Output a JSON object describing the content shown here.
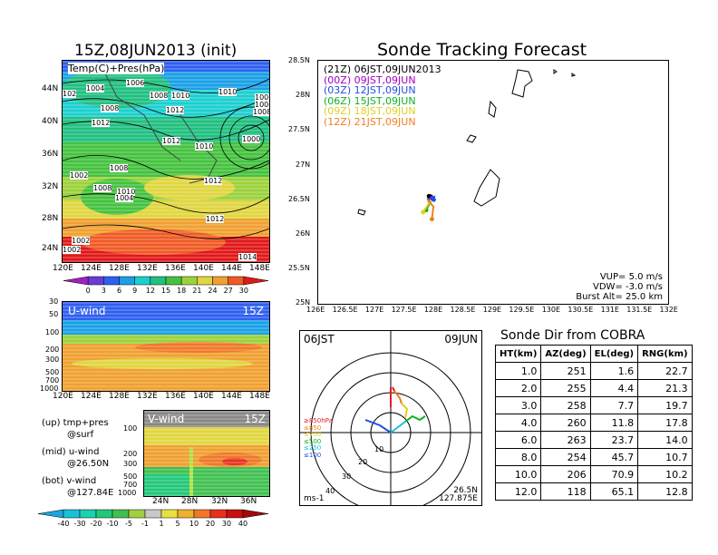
{
  "left": {
    "map_title": "15Z,08JUN2013 (init)",
    "map_label": "Temp(C)+Pres(hPa)",
    "map_lat_ticks": [
      "44N",
      "40N",
      "36N",
      "32N",
      "28N",
      "24N"
    ],
    "lon_ticks": [
      "120E",
      "124E",
      "128E",
      "132E",
      "136E",
      "140E",
      "144E",
      "148E"
    ],
    "pressure_labels": [
      "1004",
      "1006",
      "1008",
      "1010",
      "1010",
      "1008",
      "1012",
      "1012",
      "1010",
      "1012",
      "1000",
      "1008",
      "1002",
      "1008",
      "1010",
      "1004",
      "1012",
      "1012",
      "1002",
      "1002",
      "1014",
      "102",
      "1006",
      "1006",
      "1008"
    ],
    "temp_colorbar": {
      "ticks": [
        "0",
        "3",
        "6",
        "9",
        "12",
        "15",
        "18",
        "21",
        "24",
        "27",
        "30"
      ],
      "colors": [
        "#a020c0",
        "#6a3cd6",
        "#2f5ff0",
        "#19a0e6",
        "#1ccfcf",
        "#20c080",
        "#44c23e",
        "#9bd23a",
        "#e0d640",
        "#f0a030",
        "#f05a24",
        "#e01818"
      ]
    },
    "uwind_title": "U-wind",
    "uwind_time": "15Z",
    "uwind_y_ticks": [
      "30",
      "50",
      "100",
      "200",
      "300",
      "500",
      "700",
      "1000"
    ],
    "vwind_title": "V-wind",
    "vwind_time": "15Z",
    "vwind_y_ticks": [
      "100",
      "200",
      "300",
      "500",
      "700",
      "1000"
    ],
    "vwind_x_ticks": [
      "24N",
      "28N",
      "32N",
      "36N"
    ],
    "notes": [
      "(up) tmp+pres",
      "@surf",
      "(mid) u-wind",
      "@26.50N",
      "(bot) v-wind",
      "@127.84E"
    ],
    "wind_colorbar": {
      "ticks": [
        "-40",
        "-30",
        "-20",
        "-10",
        "-5",
        "-1",
        "1",
        "5",
        "10",
        "20",
        "30",
        "40"
      ],
      "colors": [
        "#1aa6e0",
        "#18c0d8",
        "#1cd0b0",
        "#22c87a",
        "#40c050",
        "#a0d040",
        "#c8c8c8",
        "#e8e040",
        "#f0b030",
        "#f07828",
        "#e83020",
        "#c81010",
        "#a00c0c"
      ]
    }
  },
  "tracking": {
    "title": "Sonde Tracking Forecast",
    "lat_ticks": [
      "28.5N",
      "28N",
      "27.5N",
      "27N",
      "26.5N",
      "26N",
      "25.5N",
      "25N"
    ],
    "lon_ticks": [
      "126E",
      "126.5E",
      "127E",
      "127.5E",
      "128E",
      "128.5E",
      "129E",
      "129.5E",
      "130E",
      "130.5E",
      "131E",
      "131.5E",
      "132E"
    ],
    "legend": [
      {
        "label": "(21Z) 06JST,09JUN2013",
        "color": "#000000"
      },
      {
        "label": "(00Z) 09JST,09JUN",
        "color": "#a000c0"
      },
      {
        "label": "(03Z) 12JST,09JUN",
        "color": "#2050e0"
      },
      {
        "label": "(06Z) 15JST,09JUN",
        "color": "#10b020"
      },
      {
        "label": "(09Z) 18JST,09JUN",
        "color": "#e0d020"
      },
      {
        "label": "(12Z) 21JST,09JUN",
        "color": "#f08020"
      }
    ],
    "params": [
      "VUP=  5.0 m/s",
      "VDW= -3.0 m/s",
      "Burst Alt=  25.0 km"
    ],
    "track_ends": [
      {
        "lon": 127.9,
        "lat": 26.55,
        "color": "#000000"
      },
      {
        "lon": 127.95,
        "lat": 26.52,
        "color": "#a000c0"
      },
      {
        "lon": 127.98,
        "lat": 26.5,
        "color": "#2050e0"
      },
      {
        "lon": 127.85,
        "lat": 26.35,
        "color": "#10b020"
      },
      {
        "lon": 127.8,
        "lat": 26.32,
        "color": "#e0d020"
      },
      {
        "lon": 127.95,
        "lat": 26.22,
        "color": "#f08020"
      }
    ]
  },
  "polar": {
    "time_label": "06JST",
    "date_label": "09JUN",
    "ring_labels": [
      "10",
      "20",
      "30",
      "40"
    ],
    "pressure_legend": [
      {
        "label": "≥850hPa",
        "color": "#e02020"
      },
      {
        "label": "≤850",
        "color": "#f08020"
      },
      {
        "label": "≤700",
        "color": "#e0d020"
      },
      {
        "label": "≤500",
        "color": "#10b020"
      },
      {
        "label": "≤250",
        "color": "#18c0d8"
      },
      {
        "label": "≤100",
        "color": "#2050e0"
      }
    ],
    "unit": "ms-1",
    "loc_lat": "26.5N",
    "loc_lon": "127.875E"
  },
  "chart_data": {
    "type": "table",
    "title": "Sonde Dir from COBRA",
    "columns": [
      "HT(km)",
      "AZ(deg)",
      "EL(deg)",
      "RNG(km)"
    ],
    "rows": [
      [
        "1.0",
        "251",
        "1.6",
        "22.7"
      ],
      [
        "2.0",
        "255",
        "4.4",
        "21.3"
      ],
      [
        "3.0",
        "258",
        "7.7",
        "19.7"
      ],
      [
        "4.0",
        "260",
        "11.8",
        "17.8"
      ],
      [
        "6.0",
        "263",
        "23.7",
        "14.0"
      ],
      [
        "8.0",
        "254",
        "45.7",
        "10.7"
      ],
      [
        "10.0",
        "206",
        "70.9",
        "10.2"
      ],
      [
        "12.0",
        "118",
        "65.1",
        "12.8"
      ]
    ]
  }
}
